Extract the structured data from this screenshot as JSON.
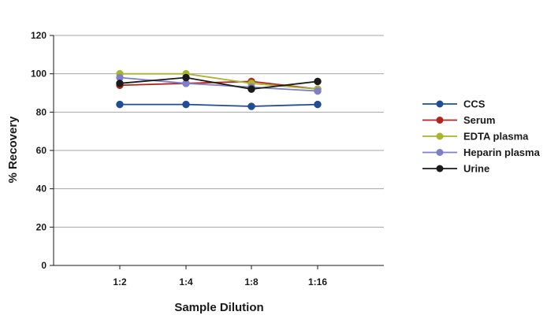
{
  "chart_data": {
    "type": "line",
    "title": "",
    "xlabel": "Sample Dilution",
    "ylabel": "% Recovery",
    "categories": [
      "1:2",
      "1:4",
      "1:8",
      "1:16"
    ],
    "ylim": [
      0,
      120
    ],
    "yticks": [
      0,
      20,
      40,
      60,
      80,
      100,
      120
    ],
    "grid": "horizontal",
    "legend_position": "right",
    "series": [
      {
        "name": "CCS",
        "color": "#1f4e96",
        "values": [
          84,
          84,
          83,
          84
        ]
      },
      {
        "name": "Serum",
        "color": "#b0261e",
        "values": [
          94,
          95,
          96,
          92
        ]
      },
      {
        "name": "EDTA plasma",
        "color": "#a9b52a",
        "values": [
          100,
          100,
          95,
          92
        ]
      },
      {
        "name": "Heparin plasma",
        "color": "#7f7fc8",
        "values": [
          98,
          95,
          93,
          91
        ]
      },
      {
        "name": "Urine",
        "color": "#1a1a1a",
        "values": [
          95,
          98,
          92,
          96
        ]
      }
    ]
  }
}
